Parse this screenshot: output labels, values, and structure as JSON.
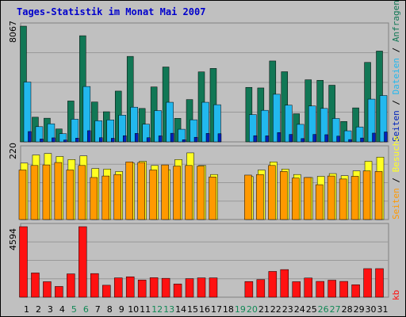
{
  "chart_data": [
    {
      "type": "bar",
      "title": "Tages-Statistik im Monat Mai 2007",
      "panel": "top",
      "y_label": "8067",
      "x": [
        "1",
        "2",
        "3",
        "4",
        "5",
        "6",
        "7",
        "8",
        "9",
        "10",
        "11",
        "12",
        "13",
        "14",
        "15",
        "16",
        "17",
        "18",
        "19",
        "20",
        "21",
        "22",
        "23",
        "24",
        "25",
        "26",
        "27",
        "28",
        "29",
        "30",
        "31"
      ],
      "series": [
        {
          "name": "Anfragen",
          "color": "#117755",
          "values": [
            8067,
            1720,
            1650,
            900,
            2850,
            7400,
            2780,
            2100,
            3540,
            5960,
            2330,
            3830,
            5220,
            1640,
            2950,
            4880,
            5120,
            null,
            null,
            3800,
            3760,
            5640,
            4890,
            1960,
            4330,
            4290,
            3950,
            1420,
            2370,
            5540,
            6330
          ]
        },
        {
          "name": "Dateien",
          "color": "#22b8ee",
          "values": [
            4170,
            1060,
            1260,
            570,
            1580,
            3860,
            1470,
            1530,
            1860,
            2420,
            1230,
            2180,
            2760,
            880,
            1540,
            2760,
            2590,
            null,
            null,
            1900,
            2200,
            3320,
            2560,
            1220,
            2500,
            2330,
            1630,
            770,
            1040,
            2980,
            3230
          ]
        },
        {
          "name": "Seiten",
          "color": "#0022bb",
          "values": [
            720,
            200,
            280,
            130,
            260,
            780,
            290,
            250,
            430,
            590,
            290,
            420,
            600,
            150,
            320,
            590,
            570,
            null,
            null,
            430,
            420,
            650,
            520,
            230,
            520,
            500,
            400,
            160,
            270,
            610,
            690
          ]
        }
      ]
    },
    {
      "type": "bar",
      "panel": "middle",
      "y_label": "220",
      "x": [
        "1",
        "2",
        "3",
        "4",
        "5",
        "6",
        "7",
        "8",
        "9",
        "10",
        "11",
        "12",
        "13",
        "14",
        "15",
        "16",
        "17",
        "18",
        "19",
        "20",
        "21",
        "22",
        "23",
        "24",
        "25",
        "26",
        "27",
        "28",
        "29",
        "30",
        "31"
      ],
      "series": [
        {
          "name": "Besuche",
          "color": "#ffff22",
          "values": [
            188,
            215,
            220,
            210,
            200,
            212,
            170,
            168,
            160,
            188,
            194,
            180,
            166,
            200,
            222,
            180,
            150,
            null,
            null,
            143,
            165,
            192,
            168,
            150,
            140,
            144,
            153,
            146,
            162,
            194,
            208
          ]
        },
        {
          "name": "Seiten",
          "color": "#ff9900",
          "values": [
            165,
            180,
            182,
            190,
            165,
            180,
            140,
            145,
            150,
            192,
            190,
            165,
            182,
            178,
            180,
            178,
            142,
            null,
            null,
            148,
            150,
            180,
            160,
            138,
            140,
            116,
            145,
            135,
            144,
            162,
            160
          ]
        }
      ]
    },
    {
      "type": "bar",
      "panel": "bottom",
      "y_label": "4594",
      "x": [
        "1",
        "2",
        "3",
        "4",
        "5",
        "6",
        "7",
        "8",
        "9",
        "10",
        "11",
        "12",
        "13",
        "14",
        "15",
        "16",
        "17",
        "18",
        "19",
        "20",
        "21",
        "22",
        "23",
        "24",
        "25",
        "26",
        "27",
        "28",
        "29",
        "30",
        "31"
      ],
      "series": [
        {
          "name": "kb",
          "color": "#ff1111",
          "values": [
            4594,
            1580,
            1010,
            700,
            1520,
            4594,
            1540,
            780,
            1260,
            1330,
            1120,
            1270,
            1230,
            860,
            1210,
            1260,
            1260,
            null,
            null,
            1020,
            1150,
            1680,
            1800,
            1010,
            1250,
            1030,
            1110,
            1030,
            810,
            1860,
            1860
          ]
        }
      ]
    }
  ],
  "legend": {
    "top": [
      {
        "text": "Seiten",
        "color": "#0022bb"
      },
      {
        "text": " / ",
        "color": "#000000"
      },
      {
        "text": "Dateien",
        "color": "#22b8ee"
      },
      {
        "text": " / ",
        "color": "#000000"
      },
      {
        "text": "Anfragen",
        "color": "#117755"
      }
    ],
    "middle": [
      {
        "text": "Seiten",
        "color": "#ff9900"
      },
      {
        "text": " / ",
        "color": "#000000"
      },
      {
        "text": "Besuche",
        "color": "#ffff22"
      }
    ],
    "bottom": [
      {
        "text": "kb",
        "color": "#ff1111"
      }
    ]
  },
  "weekend_days": [
    5,
    6,
    12,
    13,
    19,
    20,
    26,
    27
  ],
  "colors": {
    "weekday_label": "#000000",
    "weekend_label": "#118855",
    "title": "#0000cc",
    "background": "#c0c0c0"
  }
}
